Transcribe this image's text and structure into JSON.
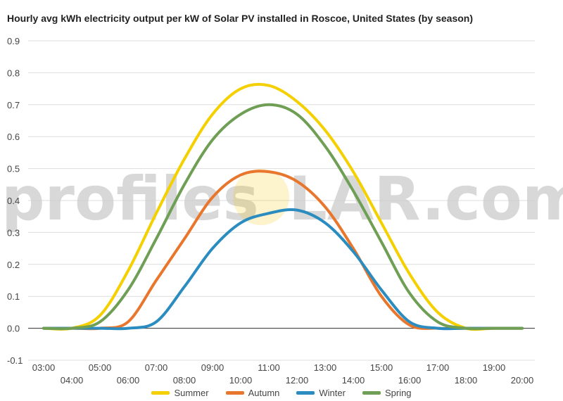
{
  "chart_data": {
    "type": "line",
    "title": "Hourly avg kWh electricity output per kW of Solar PV installed in Roscoe, United States (by season)",
    "xlabel": "",
    "ylabel": "",
    "x": [
      "03:00",
      "04:00",
      "05:00",
      "06:00",
      "07:00",
      "08:00",
      "09:00",
      "10:00",
      "11:00",
      "12:00",
      "13:00",
      "14:00",
      "15:00",
      "16:00",
      "17:00",
      "18:00",
      "19:00",
      "20:00"
    ],
    "ylim": [
      -0.1,
      0.9
    ],
    "yticks": [
      "-0.1",
      "0.0",
      "0.1",
      "0.2",
      "0.3",
      "0.4",
      "0.5",
      "0.6",
      "0.7",
      "0.8",
      "0.9"
    ],
    "grid": true,
    "legend_position": "bottom",
    "series": [
      {
        "name": "Summer",
        "color": "#f5d000",
        "values": [
          0.0,
          0.0,
          0.04,
          0.18,
          0.36,
          0.53,
          0.67,
          0.75,
          0.76,
          0.71,
          0.62,
          0.49,
          0.33,
          0.17,
          0.05,
          0.0,
          0.0,
          0.0
        ]
      },
      {
        "name": "Autumn",
        "color": "#e8762d",
        "values": [
          0.0,
          0.0,
          0.0,
          0.02,
          0.15,
          0.28,
          0.41,
          0.48,
          0.49,
          0.46,
          0.38,
          0.25,
          0.1,
          0.01,
          0.0,
          0.0,
          0.0,
          0.0
        ]
      },
      {
        "name": "Winter",
        "color": "#2a8cbf",
        "values": [
          0.0,
          0.0,
          0.0,
          0.0,
          0.02,
          0.13,
          0.25,
          0.33,
          0.36,
          0.37,
          0.33,
          0.24,
          0.12,
          0.02,
          0.0,
          0.0,
          0.0,
          0.0
        ]
      },
      {
        "name": "Spring",
        "color": "#6e9f54",
        "values": [
          0.0,
          0.0,
          0.02,
          0.12,
          0.28,
          0.45,
          0.59,
          0.67,
          0.7,
          0.67,
          0.57,
          0.43,
          0.27,
          0.11,
          0.02,
          0.0,
          0.0,
          0.0
        ]
      }
    ]
  },
  "watermark": {
    "text_left": "profiles",
    "text_right": "LAR.com",
    "sun_color": "#f5c400"
  }
}
